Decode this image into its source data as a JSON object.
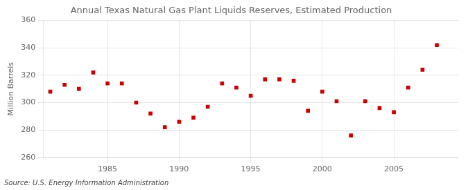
{
  "chart_data": {
    "type": "scatter",
    "title": "Annual Texas Natural Gas Plant Liquids Reserves, Estimated Production",
    "ylabel": "Million Barrels",
    "source": "Source: U.S. Energy Information Administration",
    "x": [
      1981,
      1982,
      1983,
      1984,
      1985,
      1986,
      1987,
      1988,
      1989,
      1990,
      1991,
      1992,
      1993,
      1994,
      1995,
      1996,
      1997,
      1998,
      1999,
      2000,
      2001,
      2002,
      2003,
      2004,
      2005,
      2006,
      2007,
      2008
    ],
    "values": [
      308,
      313,
      310,
      322,
      314,
      314,
      300,
      292,
      282,
      286,
      289,
      297,
      314,
      311,
      305,
      317,
      317,
      316,
      294,
      308,
      301,
      276,
      301,
      296,
      293,
      311,
      324,
      342
    ],
    "color": "#cc0000",
    "marker": "square",
    "xlim": [
      1980.5,
      2009.5
    ],
    "xticks": [
      1985,
      1990,
      1995,
      2000,
      2005
    ],
    "ylim": [
      260,
      360
    ],
    "yticks": [
      260,
      280,
      300,
      320,
      340,
      360
    ],
    "grid": true
  }
}
